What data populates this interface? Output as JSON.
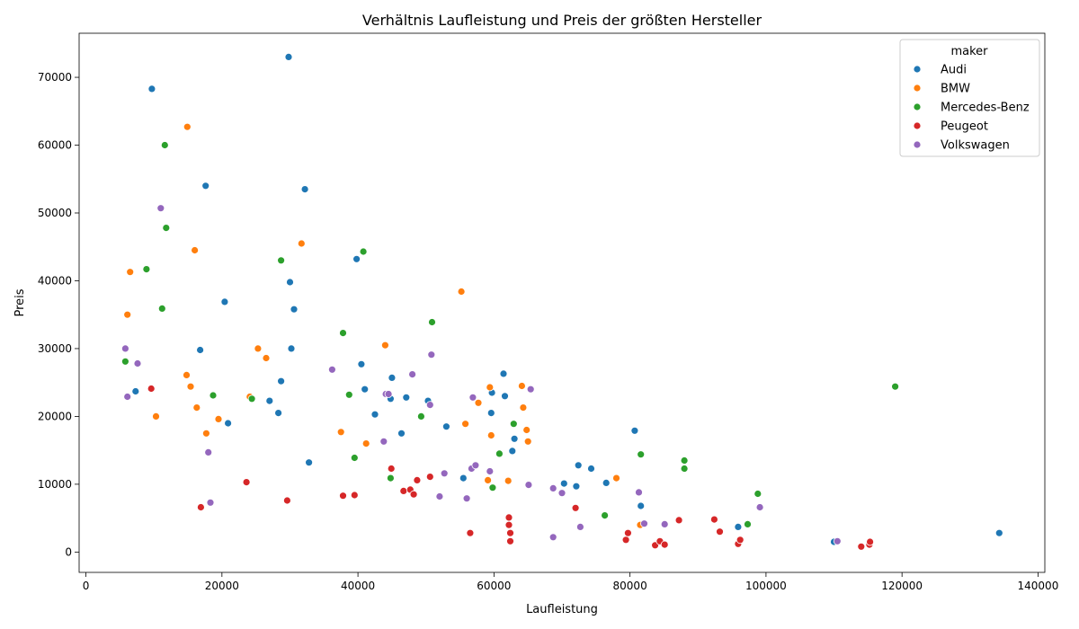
{
  "chart_data": {
    "type": "scatter",
    "title": "Verhältnis Laufleistung und Preis der größten Hersteller",
    "xlabel": "Laufleistung",
    "ylabel": "Preis",
    "xlim": [
      -1000,
      141000
    ],
    "ylim": [
      -3000,
      76500
    ],
    "x_ticks": [
      0,
      20000,
      40000,
      60000,
      80000,
      100000,
      120000,
      140000
    ],
    "x_tick_labels": [
      "0",
      "20000",
      "40000",
      "60000",
      "80000",
      "100000",
      "120000",
      "140000"
    ],
    "y_ticks": [
      0,
      10000,
      20000,
      30000,
      40000,
      50000,
      60000,
      70000
    ],
    "y_tick_labels": [
      "0",
      "10000",
      "20000",
      "30000",
      "40000",
      "50000",
      "60000",
      "70000"
    ],
    "grid": false,
    "legend": {
      "title": "maker",
      "position": "top-right"
    },
    "series": [
      {
        "name": "Audi",
        "color": "#1f77b4",
        "points": [
          [
            29800,
            73000
          ],
          [
            9700,
            68300
          ],
          [
            17600,
            54000
          ],
          [
            32200,
            53500
          ],
          [
            39800,
            43200
          ],
          [
            30000,
            39800
          ],
          [
            20400,
            36900
          ],
          [
            30600,
            35800
          ],
          [
            16800,
            29800
          ],
          [
            30200,
            30000
          ],
          [
            40500,
            27700
          ],
          [
            45000,
            25700
          ],
          [
            28700,
            25200
          ],
          [
            41000,
            24000
          ],
          [
            7300,
            23700
          ],
          [
            44800,
            22600
          ],
          [
            47100,
            22800
          ],
          [
            50300,
            22300
          ],
          [
            59700,
            23500
          ],
          [
            61400,
            26300
          ],
          [
            61600,
            23000
          ],
          [
            27000,
            22300
          ],
          [
            28300,
            20500
          ],
          [
            42500,
            20300
          ],
          [
            59600,
            20500
          ],
          [
            20900,
            19000
          ],
          [
            53000,
            18500
          ],
          [
            46400,
            17500
          ],
          [
            63000,
            16700
          ],
          [
            62700,
            14900
          ],
          [
            32800,
            13200
          ],
          [
            55500,
            10900
          ],
          [
            72400,
            12800
          ],
          [
            74300,
            12300
          ],
          [
            70300,
            10100
          ],
          [
            72100,
            9700
          ],
          [
            76500,
            10200
          ],
          [
            80700,
            17900
          ],
          [
            81600,
            6800
          ],
          [
            95900,
            3700
          ],
          [
            110000,
            1500
          ],
          [
            134300,
            2800
          ]
        ]
      },
      {
        "name": "BMW",
        "color": "#ff7f0e",
        "points": [
          [
            14900,
            62700
          ],
          [
            16000,
            44500
          ],
          [
            31700,
            45500
          ],
          [
            6500,
            41300
          ],
          [
            6100,
            35000
          ],
          [
            55200,
            38400
          ],
          [
            25300,
            30000
          ],
          [
            44000,
            30500
          ],
          [
            26500,
            28600
          ],
          [
            14800,
            26100
          ],
          [
            15400,
            24400
          ],
          [
            24100,
            22900
          ],
          [
            16300,
            21300
          ],
          [
            10300,
            20000
          ],
          [
            19500,
            19600
          ],
          [
            17700,
            17500
          ],
          [
            37500,
            17700
          ],
          [
            41200,
            16000
          ],
          [
            59400,
            24300
          ],
          [
            64100,
            24500
          ],
          [
            57700,
            22000
          ],
          [
            64300,
            21300
          ],
          [
            55800,
            18900
          ],
          [
            64800,
            18000
          ],
          [
            59600,
            17200
          ],
          [
            65000,
            16300
          ],
          [
            59100,
            10600
          ],
          [
            62100,
            10500
          ],
          [
            78000,
            10900
          ],
          [
            81500,
            4000
          ]
        ]
      },
      {
        "name": "Mercedes-Benz",
        "color": "#2ca02c",
        "points": [
          [
            11600,
            60000
          ],
          [
            11800,
            47800
          ],
          [
            40800,
            44300
          ],
          [
            28700,
            43000
          ],
          [
            8900,
            41700
          ],
          [
            11200,
            35900
          ],
          [
            50900,
            33900
          ],
          [
            37800,
            32300
          ],
          [
            5800,
            28100
          ],
          [
            18700,
            23100
          ],
          [
            24400,
            22600
          ],
          [
            38700,
            23200
          ],
          [
            49300,
            20000
          ],
          [
            62900,
            18900
          ],
          [
            39500,
            13900
          ],
          [
            60800,
            14500
          ],
          [
            81600,
            14400
          ],
          [
            88000,
            13500
          ],
          [
            88000,
            12300
          ],
          [
            44800,
            10900
          ],
          [
            59800,
            9500
          ],
          [
            76300,
            5400
          ],
          [
            97300,
            4100
          ],
          [
            98800,
            8600
          ],
          [
            119000,
            24400
          ]
        ]
      },
      {
        "name": "Peugeot",
        "color": "#d62728",
        "points": [
          [
            9600,
            24100
          ],
          [
            23600,
            10300
          ],
          [
            16900,
            6600
          ],
          [
            29600,
            7600
          ],
          [
            37800,
            8300
          ],
          [
            39500,
            8400
          ],
          [
            44900,
            12300
          ],
          [
            46700,
            9000
          ],
          [
            47700,
            9200
          ],
          [
            48200,
            8500
          ],
          [
            48700,
            10600
          ],
          [
            50600,
            11100
          ],
          [
            56500,
            2800
          ],
          [
            62200,
            5100
          ],
          [
            62200,
            4000
          ],
          [
            62400,
            2800
          ],
          [
            62400,
            1600
          ],
          [
            72000,
            6500
          ],
          [
            79400,
            1800
          ],
          [
            79700,
            2800
          ],
          [
            83700,
            1000
          ],
          [
            84400,
            1600
          ],
          [
            85100,
            1100
          ],
          [
            87200,
            4700
          ],
          [
            92400,
            4800
          ],
          [
            93200,
            3000
          ],
          [
            95900,
            1200
          ],
          [
            96200,
            1800
          ],
          [
            114000,
            800
          ],
          [
            115200,
            1100
          ],
          [
            115300,
            1500
          ]
        ]
      },
      {
        "name": "Volkswagen",
        "color": "#9467bd",
        "points": [
          [
            11000,
            50700
          ],
          [
            5800,
            30000
          ],
          [
            7600,
            27800
          ],
          [
            36200,
            26900
          ],
          [
            6100,
            22900
          ],
          [
            50800,
            29100
          ],
          [
            48000,
            26200
          ],
          [
            44100,
            23300
          ],
          [
            44500,
            23300
          ],
          [
            50600,
            21700
          ],
          [
            56900,
            22800
          ],
          [
            65400,
            24000
          ],
          [
            18000,
            14700
          ],
          [
            18300,
            7300
          ],
          [
            43800,
            16300
          ],
          [
            52700,
            11600
          ],
          [
            56700,
            12300
          ],
          [
            57300,
            12800
          ],
          [
            59400,
            11900
          ],
          [
            52000,
            8200
          ],
          [
            56000,
            7900
          ],
          [
            65100,
            9900
          ],
          [
            68700,
            9400
          ],
          [
            70000,
            8700
          ],
          [
            68700,
            2200
          ],
          [
            72700,
            3700
          ],
          [
            81300,
            8800
          ],
          [
            82100,
            4200
          ],
          [
            85100,
            4100
          ],
          [
            99100,
            6600
          ],
          [
            110500,
            1600
          ]
        ]
      }
    ]
  }
}
